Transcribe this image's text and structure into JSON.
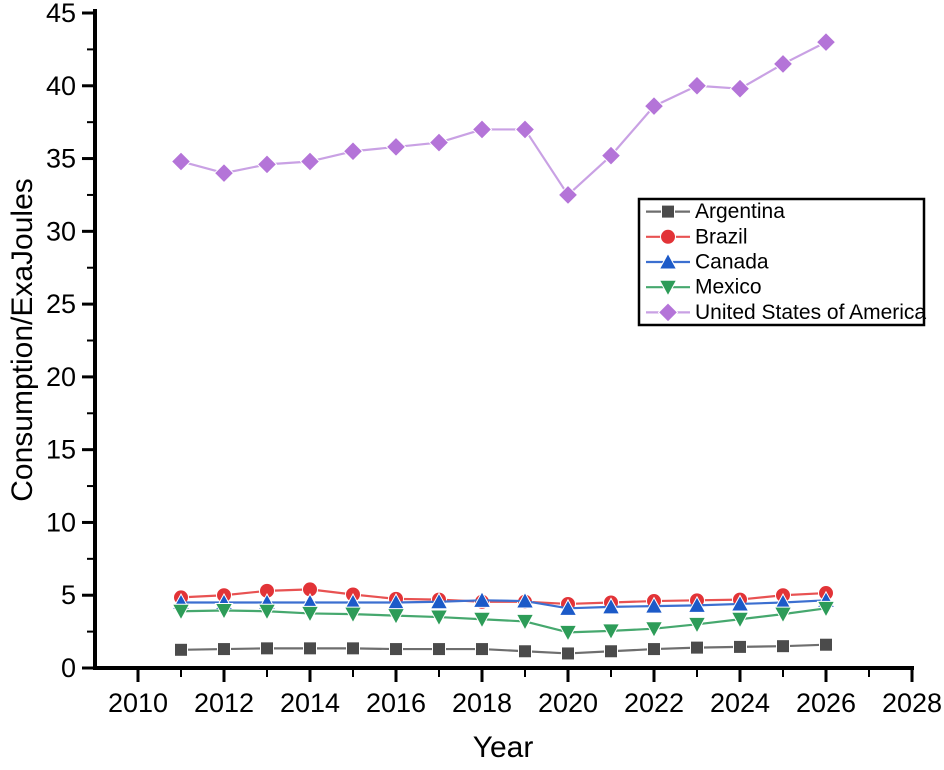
{
  "chart_data": {
    "type": "line",
    "title": "",
    "xlabel": "Year",
    "ylabel": "Consumption/ExaJoules",
    "x_range": [
      2009,
      2028
    ],
    "ylim": [
      0,
      45
    ],
    "grid": false,
    "legend_position": "middle-right",
    "legend_border": true,
    "axis_color": "#000000",
    "x_major_ticks": [
      2010,
      2012,
      2014,
      2016,
      2018,
      2020,
      2022,
      2024,
      2026,
      2028
    ],
    "x_minor_ticks": [
      2011,
      2013,
      2015,
      2017,
      2019,
      2021,
      2023,
      2025,
      2027
    ],
    "y_major_ticks": [
      0,
      5,
      10,
      15,
      20,
      25,
      30,
      35,
      40,
      45
    ],
    "y_minor_ticks": [
      2.5,
      7.5,
      12.5,
      17.5,
      22.5,
      27.5,
      32.5,
      37.5,
      42.5
    ],
    "x": [
      2011,
      2012,
      2013,
      2014,
      2015,
      2016,
      2017,
      2018,
      2019,
      2020,
      2021,
      2022,
      2023,
      2024,
      2025,
      2026
    ],
    "series": [
      {
        "name": "Argentina",
        "marker": "square",
        "marker_color": "#4B4B4B",
        "line_color": "#6E6E6E",
        "values": [
          1.25,
          1.3,
          1.35,
          1.35,
          1.35,
          1.3,
          1.3,
          1.3,
          1.15,
          1.0,
          1.15,
          1.3,
          1.4,
          1.45,
          1.5,
          1.6
        ]
      },
      {
        "name": "Brazil",
        "marker": "circle",
        "marker_color": "#E23337",
        "line_color": "#E85252",
        "values": [
          4.85,
          5.0,
          5.3,
          5.4,
          5.05,
          4.75,
          4.7,
          4.55,
          4.55,
          4.4,
          4.5,
          4.6,
          4.65,
          4.7,
          5.0,
          5.15
        ]
      },
      {
        "name": "Canada",
        "marker": "triangle-up",
        "marker_color": "#1C5AC8",
        "line_color": "#3C6FD0",
        "values": [
          4.5,
          4.5,
          4.5,
          4.5,
          4.5,
          4.5,
          4.55,
          4.65,
          4.6,
          4.1,
          4.2,
          4.25,
          4.3,
          4.4,
          4.5,
          4.65
        ]
      },
      {
        "name": "Mexico",
        "marker": "triangle-down",
        "marker_color": "#2D9C58",
        "line_color": "#46A86E",
        "values": [
          3.9,
          3.95,
          3.9,
          3.75,
          3.7,
          3.6,
          3.5,
          3.35,
          3.2,
          2.45,
          2.55,
          2.7,
          3.0,
          3.35,
          3.7,
          4.1
        ]
      },
      {
        "name": "United States of America",
        "marker": "diamond",
        "marker_color": "#B474D8",
        "line_color": "#C9A1E4",
        "values": [
          34.8,
          34.0,
          34.6,
          34.8,
          35.5,
          35.8,
          36.1,
          37.0,
          37.0,
          32.5,
          35.2,
          38.6,
          40.0,
          39.8,
          41.5,
          43.0
        ]
      }
    ]
  }
}
